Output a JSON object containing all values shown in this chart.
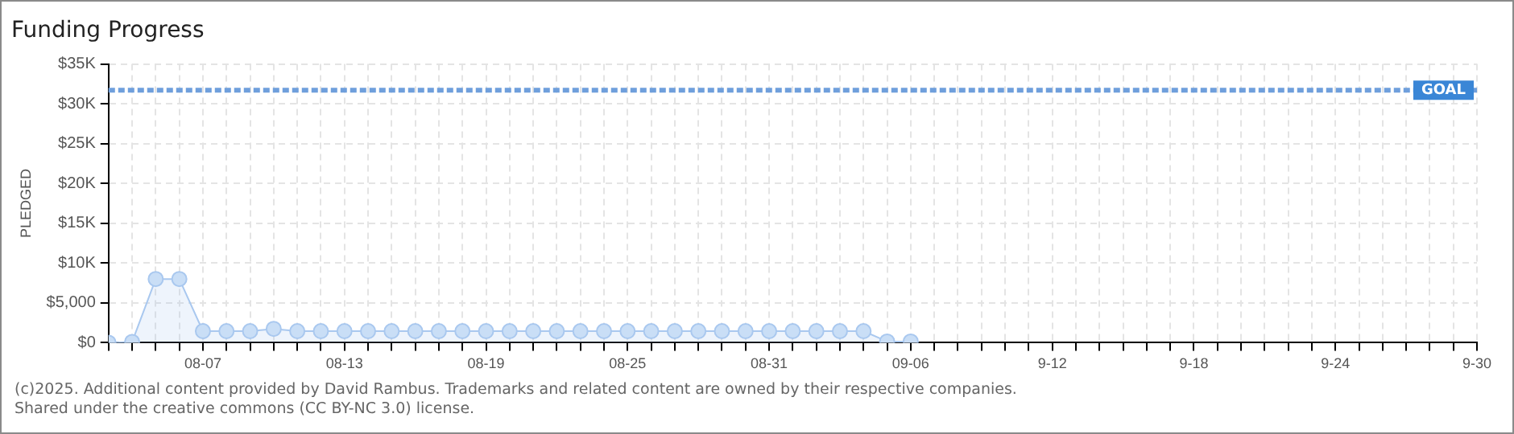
{
  "chart_data": {
    "type": "area",
    "title": "Funding Progress",
    "ylabel": "PLEDGED",
    "x": [
      "--08-03",
      "--08-04",
      "--08-05",
      "--08-06",
      "--08-07",
      "--08-08",
      "--08-09",
      "--08-10",
      "--08-11",
      "--08-12",
      "--08-13",
      "--08-14",
      "--08-15",
      "--08-16",
      "--08-17",
      "--08-18",
      "--08-19",
      "--08-20",
      "--08-21",
      "--08-22",
      "--08-23",
      "--08-24",
      "--08-25",
      "--08-26",
      "--08-27",
      "--08-28",
      "--08-29",
      "--08-30",
      "--08-31",
      "--09-01",
      "--09-02",
      "--09-03",
      "--09-04",
      "--09-05",
      "--09-06"
    ],
    "series": [
      {
        "color": "#a9c8ef",
        "values": [
          0,
          100,
          8000,
          8000,
          1450,
          1450,
          1450,
          1740,
          1450,
          1450,
          1450,
          1450,
          1450,
          1450,
          1450,
          1450,
          1450,
          1450,
          1450,
          1450,
          1450,
          1450,
          1450,
          1450,
          1450,
          1450,
          1450,
          1450,
          1450,
          1450,
          1450,
          1450,
          1450,
          150,
          150
        ]
      }
    ],
    "xlim": [
      "--08-03",
      "--09-30"
    ],
    "xticks": [
      {
        "value": "--08-03",
        "label": null
      },
      {
        "value": "--08-04",
        "label": null
      },
      {
        "value": "--08-05",
        "label": null
      },
      {
        "value": "--08-06",
        "label": null
      },
      {
        "value": "--08-07",
        "label": "08-07"
      },
      {
        "value": "--08-08",
        "label": null
      },
      {
        "value": "--08-09",
        "label": null
      },
      {
        "value": "--08-10",
        "label": null
      },
      {
        "value": "--08-11",
        "label": null
      },
      {
        "value": "--08-12",
        "label": null
      },
      {
        "value": "--08-13",
        "label": "08-13"
      },
      {
        "value": "--08-14",
        "label": null
      },
      {
        "value": "--08-15",
        "label": null
      },
      {
        "value": "--08-16",
        "label": null
      },
      {
        "value": "--08-17",
        "label": null
      },
      {
        "value": "--08-18",
        "label": null
      },
      {
        "value": "--08-19",
        "label": "08-19"
      },
      {
        "value": "--08-20",
        "label": null
      },
      {
        "value": "--08-21",
        "label": null
      },
      {
        "value": "--08-22",
        "label": null
      },
      {
        "value": "--08-23",
        "label": null
      },
      {
        "value": "--08-24",
        "label": null
      },
      {
        "value": "--08-25",
        "label": "08-25"
      },
      {
        "value": "--08-26",
        "label": null
      },
      {
        "value": "--08-27",
        "label": null
      },
      {
        "value": "--08-28",
        "label": null
      },
      {
        "value": "--08-29",
        "label": null
      },
      {
        "value": "--08-30",
        "label": null
      },
      {
        "value": "--08-31",
        "label": "08-31"
      },
      {
        "value": "--09-01",
        "label": null
      },
      {
        "value": "--09-02",
        "label": null
      },
      {
        "value": "--09-03",
        "label": null
      },
      {
        "value": "--09-04",
        "label": null
      },
      {
        "value": "--09-05",
        "label": null
      },
      {
        "value": "--09-06",
        "label": "09-06"
      },
      {
        "value": "--09-07",
        "label": null
      },
      {
        "value": "--09-08",
        "label": null
      },
      {
        "value": "--09-09",
        "label": null
      },
      {
        "value": "--09-10",
        "label": null
      },
      {
        "value": "--09-11",
        "label": null
      },
      {
        "value": "--09-12",
        "label": "9-12"
      },
      {
        "value": "--09-13",
        "label": null
      },
      {
        "value": "--09-14",
        "label": null
      },
      {
        "value": "--09-15",
        "label": null
      },
      {
        "value": "--09-16",
        "label": null
      },
      {
        "value": "--09-17",
        "label": null
      },
      {
        "value": "--09-18",
        "label": "9-18"
      },
      {
        "value": "--09-19",
        "label": null
      },
      {
        "value": "--09-20",
        "label": null
      },
      {
        "value": "--09-21",
        "label": null
      },
      {
        "value": "--09-22",
        "label": null
      },
      {
        "value": "--09-23",
        "label": null
      },
      {
        "value": "--09-24",
        "label": "9-24"
      },
      {
        "value": "--09-25",
        "label": null
      },
      {
        "value": "--09-26",
        "label": null
      },
      {
        "value": "--09-27",
        "label": null
      },
      {
        "value": "--09-28",
        "label": null
      },
      {
        "value": "--09-29",
        "label": null
      },
      {
        "value": "--09-30",
        "label": "9-30"
      }
    ],
    "ylim": [
      0,
      35000
    ],
    "yticks": [
      {
        "value": 0,
        "label": "$0"
      },
      {
        "value": 5000,
        "label": "$5,000"
      },
      {
        "value": 10000,
        "label": "$10K"
      },
      {
        "value": 15000,
        "label": "$15K"
      },
      {
        "value": 20000,
        "label": "$20K"
      },
      {
        "value": 25000,
        "label": "$25K"
      },
      {
        "value": 30000,
        "label": "$30K"
      },
      {
        "value": 35000,
        "label": "$35K"
      }
    ],
    "ref_lines": [
      {
        "axis": "y",
        "value": 31700,
        "label": "GOAL",
        "color": "#6f9fdc",
        "line_style": "dashed"
      }
    ],
    "grid": true,
    "marker": "circle",
    "legend": false,
    "annotations": [
      "(c)2025. Additional content provided by David Rambus. Trademarks and related content are owned by their respective companies.",
      "Shared under the creative commons (CC BY-NC 3.0) license."
    ]
  }
}
